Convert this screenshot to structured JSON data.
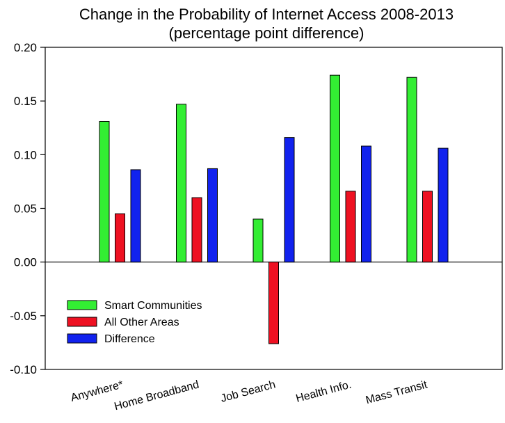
{
  "chart_data": {
    "type": "bar",
    "title": "Change in the Probability of Internet Access 2008-2013",
    "subtitle": "(percentage point difference)",
    "xlabel": "",
    "ylabel": "",
    "ylim": [
      -0.1,
      0.2
    ],
    "yticks": [
      "0.20",
      "0.15",
      "0.10",
      "0.05",
      "0.00",
      "-0.05",
      "-0.10"
    ],
    "ytick_values": [
      0.2,
      0.15,
      0.1,
      0.05,
      0.0,
      -0.05,
      -0.1
    ],
    "categories": [
      "Anywhere*",
      "Home Broadband",
      "Job Search",
      "Health Info.",
      "Mass Transit"
    ],
    "series": [
      {
        "name": "Smart Communities",
        "color": "#33ee33",
        "values": [
          0.131,
          0.147,
          0.04,
          0.174,
          0.172
        ]
      },
      {
        "name": "All Other Areas",
        "color": "#ee1122",
        "values": [
          0.045,
          0.06,
          -0.076,
          0.066,
          0.066
        ]
      },
      {
        "name": "Difference",
        "color": "#1122ee",
        "values": [
          0.086,
          0.087,
          0.116,
          0.108,
          0.106
        ]
      }
    ],
    "legend_position": "lower-left",
    "grid": false
  }
}
